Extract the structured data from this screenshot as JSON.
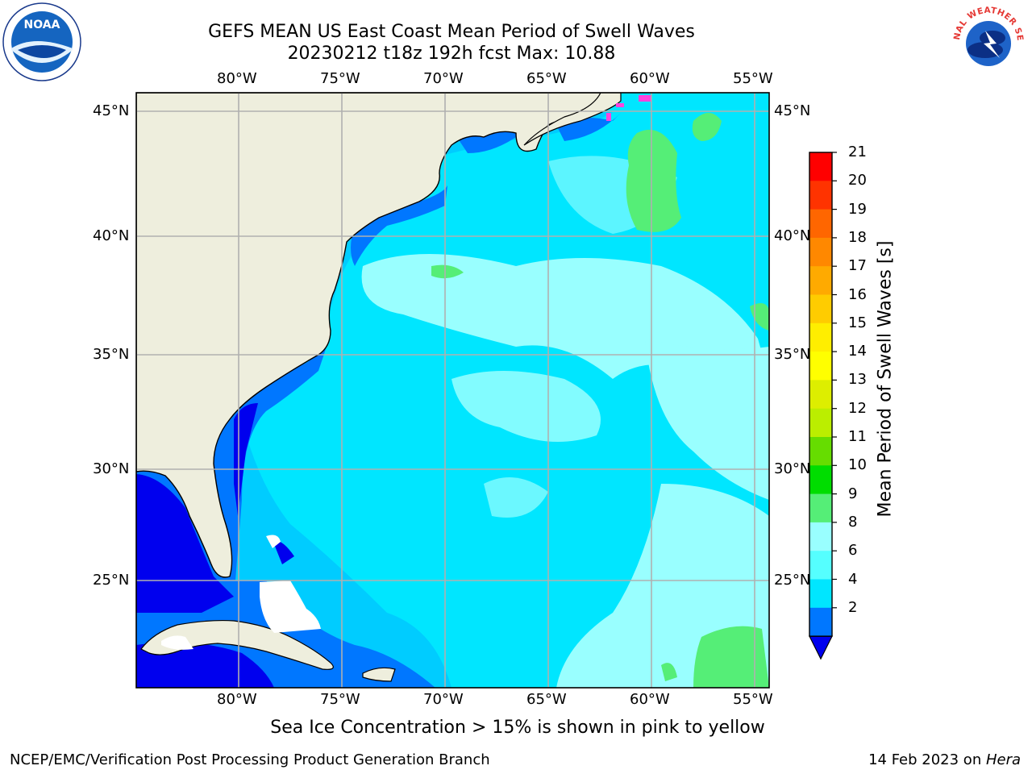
{
  "header": {
    "title_line1": "GEFS MEAN US East Coast Mean Period of Swell Waves",
    "title_line2": "20230212 t18z 192h fcst   Max: 10.88"
  },
  "logos": {
    "noaa": {
      "name": "noaa-logo",
      "text": "NOAA"
    },
    "nws": {
      "name": "nws-logo",
      "text": "NATIONAL WEATHER SERVICE"
    }
  },
  "map": {
    "lon_labels": [
      "80°W",
      "75°W",
      "70°W",
      "65°W",
      "60°W",
      "55°W"
    ],
    "lat_labels": [
      "45°N",
      "40°N",
      "35°N",
      "30°N",
      "25°N"
    ],
    "colors": {
      "land": "#eeeedd",
      "band_2_4": "#0044ff",
      "band_4_6": "#00ccff",
      "band_6_8": "#00e6ff",
      "band_8_9": "#99ffff",
      "band_9_10": "#55ee77",
      "band_deep": "#0000ee",
      "ice": "#ff44dd",
      "grid": "#b0b0b0"
    }
  },
  "colorbar": {
    "title": "Mean Period of Swell Waves [s]",
    "ticks": [
      "21",
      "20",
      "19",
      "18",
      "17",
      "16",
      "15",
      "14",
      "13",
      "12",
      "11",
      "10",
      "9",
      "8",
      "6",
      "4",
      "2"
    ],
    "colors": [
      "#ff0000",
      "#ff3300",
      "#ff6600",
      "#ff8800",
      "#ffaa00",
      "#ffcc00",
      "#ffee00",
      "#ffff00",
      "#ddee00",
      "#bbee00",
      "#66dd00",
      "#00dd00",
      "#55ee77",
      "#99ffff",
      "#55ffff",
      "#00e6ff",
      "#0077ff"
    ],
    "under_color": "#0000ee"
  },
  "footer": {
    "ice_note": "Sea Ice Concentration > 15% is shown in pink to yellow",
    "left": "NCEP/EMC/Verification Post Processing Product Generation Branch",
    "right_prefix": "14 Feb 2023 on ",
    "right_machine": "Hera"
  }
}
